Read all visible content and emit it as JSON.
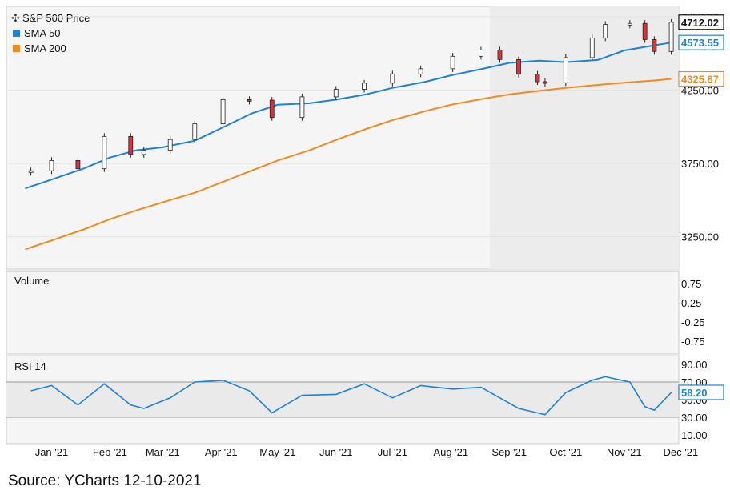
{
  "source": "Source: YCharts 12-10-2021",
  "legend": {
    "price_label": "S&P 500 Price",
    "sma50_label": "SMA 50",
    "sma200_label": "SMA 200"
  },
  "panels": {
    "volume_label": "Volume",
    "rsi_label": "RSI 14"
  },
  "colors": {
    "price_up": "#ffffff",
    "price_down": "#d9343a",
    "sma50": "#1f82d8",
    "sma200": "#f18a1f",
    "rsi_line": "#1f82d8",
    "rsi_band_fill": "#ededed",
    "last_price_box": "#111111"
  },
  "chart_data": [
    {
      "panel": "price",
      "type": "line",
      "y_axis_side": "right",
      "ylim": [
        3030,
        4820
      ],
      "y_ticks": [
        "4750.00",
        "4250.00",
        "3750.00",
        "3250.00"
      ],
      "x_ticks": [
        "Jan '21",
        "Feb '21",
        "Mar '21",
        "Apr '21",
        "May '21",
        "Jun '21",
        "Jul '21",
        "Aug '21",
        "Sep '21",
        "Oct '21",
        "Nov '21",
        "Dec '21"
      ],
      "last_values": {
        "price": "4712.02",
        "sma50": "4573.55",
        "sma200": "4325.87"
      },
      "series": [
        {
          "name": "S&P 500 Price",
          "style": "candlestick",
          "x": [
            "2021-01-04",
            "2021-01-15",
            "2021-01-29",
            "2021-02-12",
            "2021-02-26",
            "2021-03-05",
            "2021-03-19",
            "2021-04-01",
            "2021-04-16",
            "2021-04-30",
            "2021-05-12",
            "2021-05-28",
            "2021-06-15",
            "2021-06-30",
            "2021-07-15",
            "2021-07-30",
            "2021-08-16",
            "2021-08-31",
            "2021-09-10",
            "2021-09-20",
            "2021-09-30",
            "2021-10-04",
            "2021-10-15",
            "2021-10-29",
            "2021-11-05",
            "2021-11-18",
            "2021-11-26",
            "2021-12-01",
            "2021-12-10"
          ],
          "values": [
            3700,
            3770,
            3714,
            3934,
            3811,
            3841,
            3913,
            4020,
            4185,
            4181,
            4063,
            4204,
            4255,
            4297,
            4360,
            4395,
            4480,
            4523,
            4458,
            4358,
            4307,
            4300,
            4471,
            4605,
            4697,
            4704,
            4594,
            4513,
            4712
          ]
        },
        {
          "name": "SMA 50",
          "x": [
            "2021-01-01",
            "2021-01-15",
            "2021-02-01",
            "2021-02-15",
            "2021-03-01",
            "2021-03-15",
            "2021-04-01",
            "2021-04-15",
            "2021-05-01",
            "2021-05-15",
            "2021-06-01",
            "2021-06-15",
            "2021-07-01",
            "2021-07-15",
            "2021-08-01",
            "2021-08-15",
            "2021-09-01",
            "2021-09-15",
            "2021-10-01",
            "2021-10-15",
            "2021-11-01",
            "2021-11-15",
            "2021-12-01",
            "2021-12-10"
          ],
          "values": [
            3580,
            3640,
            3715,
            3790,
            3840,
            3860,
            3905,
            3990,
            4090,
            4150,
            4160,
            4185,
            4220,
            4265,
            4305,
            4350,
            4395,
            4435,
            4450,
            4440,
            4455,
            4520,
            4555,
            4573.55
          ]
        },
        {
          "name": "SMA 200",
          "x": [
            "2021-01-01",
            "2021-01-15",
            "2021-02-01",
            "2021-02-15",
            "2021-03-01",
            "2021-03-15",
            "2021-04-01",
            "2021-04-15",
            "2021-05-01",
            "2021-05-15",
            "2021-06-01",
            "2021-06-15",
            "2021-07-01",
            "2021-07-15",
            "2021-08-01",
            "2021-08-15",
            "2021-09-01",
            "2021-09-15",
            "2021-10-01",
            "2021-10-15",
            "2021-11-01",
            "2021-11-15",
            "2021-12-01",
            "2021-12-10"
          ],
          "values": [
            3165,
            3225,
            3300,
            3370,
            3430,
            3485,
            3550,
            3620,
            3700,
            3770,
            3840,
            3910,
            3985,
            4045,
            4105,
            4150,
            4190,
            4220,
            4245,
            4265,
            4285,
            4300,
            4315,
            4325.87
          ]
        }
      ]
    },
    {
      "panel": "volume",
      "type": "bar",
      "y_axis_side": "right",
      "ylim": [
        -1,
        1
      ],
      "y_ticks": [
        "0.75",
        "0.25",
        "-0.25",
        "-0.75"
      ],
      "series": []
    },
    {
      "panel": "rsi",
      "type": "line",
      "y_axis_side": "right",
      "ylim": [
        0,
        100
      ],
      "y_ticks": [
        "90.00",
        "70.00",
        "50.00",
        "30.00",
        "10.00"
      ],
      "overbought": 70,
      "oversold": 30,
      "last_value": "58.20",
      "series": [
        {
          "name": "RSI 14",
          "x": [
            "2021-01-04",
            "2021-01-15",
            "2021-01-29",
            "2021-02-12",
            "2021-02-26",
            "2021-03-05",
            "2021-03-19",
            "2021-04-01",
            "2021-04-16",
            "2021-04-30",
            "2021-05-12",
            "2021-05-28",
            "2021-06-15",
            "2021-06-30",
            "2021-07-15",
            "2021-07-30",
            "2021-08-16",
            "2021-08-31",
            "2021-09-10",
            "2021-09-20",
            "2021-09-30",
            "2021-10-04",
            "2021-10-15",
            "2021-10-29",
            "2021-11-05",
            "2021-11-18",
            "2021-11-26",
            "2021-12-01",
            "2021-12-10"
          ],
          "values": [
            60,
            66,
            44,
            68,
            44,
            40,
            52,
            70,
            72,
            60,
            35,
            55,
            56,
            68,
            52,
            66,
            62,
            64,
            52,
            40,
            35,
            33,
            58,
            72,
            76,
            70,
            42,
            38,
            58.2
          ]
        }
      ]
    }
  ]
}
